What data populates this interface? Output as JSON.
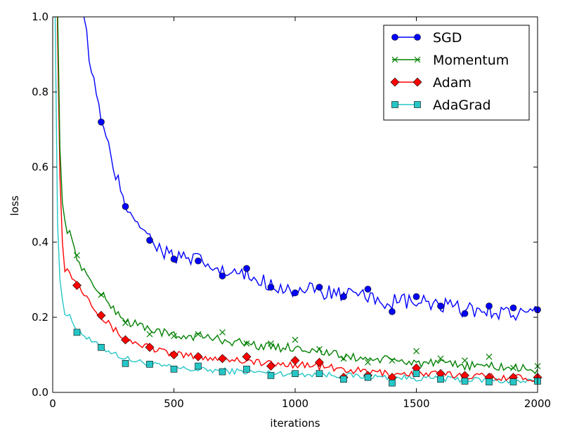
{
  "chart_data": {
    "type": "line",
    "title": "",
    "xlabel": "iterations",
    "ylabel": "loss",
    "xlim": [
      0,
      2000
    ],
    "ylim": [
      0,
      1.0
    ],
    "x_ticks": [
      "0",
      "500",
      "1000",
      "1500",
      "2000"
    ],
    "y_ticks": [
      "0.0",
      "0.2",
      "0.4",
      "0.6",
      "0.8",
      "1.0"
    ],
    "grid": false,
    "legend_position": "top-right",
    "series": [
      {
        "name": "SGD",
        "color": "#0000ff",
        "marker": "circle",
        "noise": 0.022,
        "curve": [
          [
            0,
            2.5
          ],
          [
            60,
            1.6
          ],
          [
            100,
            1.15
          ],
          [
            150,
            0.9
          ],
          [
            200,
            0.72
          ],
          [
            250,
            0.6
          ],
          [
            300,
            0.5
          ],
          [
            350,
            0.46
          ],
          [
            400,
            0.41
          ],
          [
            450,
            0.38
          ],
          [
            500,
            0.36
          ],
          [
            600,
            0.35
          ],
          [
            700,
            0.32
          ],
          [
            800,
            0.31
          ],
          [
            900,
            0.29
          ],
          [
            1000,
            0.27
          ],
          [
            1100,
            0.27
          ],
          [
            1200,
            0.26
          ],
          [
            1300,
            0.25
          ],
          [
            1400,
            0.24
          ],
          [
            1500,
            0.24
          ],
          [
            1600,
            0.23
          ],
          [
            1700,
            0.22
          ],
          [
            1800,
            0.22
          ],
          [
            1900,
            0.21
          ],
          [
            2000,
            0.21
          ]
        ],
        "markers": [
          [
            200,
            0.72
          ],
          [
            300,
            0.495
          ],
          [
            400,
            0.405
          ],
          [
            500,
            0.355
          ],
          [
            600,
            0.35
          ],
          [
            700,
            0.31
          ],
          [
            800,
            0.33
          ],
          [
            900,
            0.28
          ],
          [
            1000,
            0.265
          ],
          [
            1100,
            0.28
          ],
          [
            1200,
            0.255
          ],
          [
            1300,
            0.275
          ],
          [
            1400,
            0.215
          ],
          [
            1500,
            0.255
          ],
          [
            1600,
            0.23
          ],
          [
            1700,
            0.21
          ],
          [
            1800,
            0.23
          ],
          [
            1900,
            0.225
          ],
          [
            2000,
            0.22
          ]
        ]
      },
      {
        "name": "Momentum",
        "color": "#008000",
        "marker": "x",
        "noise": 0.012,
        "curve": [
          [
            0,
            2.5
          ],
          [
            15,
            1.3
          ],
          [
            25,
            0.75
          ],
          [
            35,
            0.55
          ],
          [
            50,
            0.45
          ],
          [
            70,
            0.42
          ],
          [
            100,
            0.36
          ],
          [
            150,
            0.3
          ],
          [
            200,
            0.26
          ],
          [
            300,
            0.19
          ],
          [
            400,
            0.17
          ],
          [
            500,
            0.15
          ],
          [
            600,
            0.15
          ],
          [
            700,
            0.14
          ],
          [
            800,
            0.13
          ],
          [
            900,
            0.12
          ],
          [
            1000,
            0.12
          ],
          [
            1100,
            0.11
          ],
          [
            1200,
            0.095
          ],
          [
            1300,
            0.09
          ],
          [
            1400,
            0.085
          ],
          [
            1500,
            0.08
          ],
          [
            1600,
            0.075
          ],
          [
            1700,
            0.072
          ],
          [
            1800,
            0.07
          ],
          [
            1900,
            0.065
          ],
          [
            2000,
            0.06
          ]
        ],
        "markers": [
          [
            100,
            0.365
          ],
          [
            200,
            0.26
          ],
          [
            300,
            0.185
          ],
          [
            400,
            0.155
          ],
          [
            500,
            0.15
          ],
          [
            600,
            0.155
          ],
          [
            700,
            0.16
          ],
          [
            800,
            0.13
          ],
          [
            900,
            0.13
          ],
          [
            1000,
            0.14
          ],
          [
            1100,
            0.115
          ],
          [
            1200,
            0.09
          ],
          [
            1300,
            0.08
          ],
          [
            1400,
            0.085
          ],
          [
            1500,
            0.11
          ],
          [
            1600,
            0.09
          ],
          [
            1700,
            0.085
          ],
          [
            1800,
            0.095
          ],
          [
            1900,
            0.065
          ],
          [
            2000,
            0.07
          ]
        ]
      },
      {
        "name": "Adam",
        "color": "#ff0000",
        "marker": "diamond",
        "noise": 0.01,
        "curve": [
          [
            0,
            2.5
          ],
          [
            15,
            1.2
          ],
          [
            25,
            0.7
          ],
          [
            35,
            0.45
          ],
          [
            50,
            0.33
          ],
          [
            70,
            0.32
          ],
          [
            100,
            0.29
          ],
          [
            150,
            0.25
          ],
          [
            200,
            0.2
          ],
          [
            300,
            0.14
          ],
          [
            400,
            0.12
          ],
          [
            500,
            0.1
          ],
          [
            600,
            0.095
          ],
          [
            700,
            0.09
          ],
          [
            800,
            0.085
          ],
          [
            900,
            0.075
          ],
          [
            1000,
            0.075
          ],
          [
            1100,
            0.07
          ],
          [
            1200,
            0.06
          ],
          [
            1300,
            0.055
          ],
          [
            1400,
            0.05
          ],
          [
            1500,
            0.05
          ],
          [
            1600,
            0.048
          ],
          [
            1700,
            0.045
          ],
          [
            1800,
            0.043
          ],
          [
            1900,
            0.04
          ],
          [
            2000,
            0.038
          ]
        ],
        "markers": [
          [
            100,
            0.285
          ],
          [
            200,
            0.205
          ],
          [
            300,
            0.14
          ],
          [
            400,
            0.12
          ],
          [
            500,
            0.1
          ],
          [
            600,
            0.095
          ],
          [
            700,
            0.09
          ],
          [
            800,
            0.095
          ],
          [
            900,
            0.07
          ],
          [
            1000,
            0.085
          ],
          [
            1100,
            0.08
          ],
          [
            1200,
            0.04
          ],
          [
            1300,
            0.045
          ],
          [
            1400,
            0.04
          ],
          [
            1500,
            0.065
          ],
          [
            1600,
            0.05
          ],
          [
            1700,
            0.045
          ],
          [
            1800,
            0.04
          ],
          [
            1900,
            0.04
          ],
          [
            2000,
            0.04
          ]
        ]
      },
      {
        "name": "AdaGrad",
        "color": "#00bfbf",
        "marker": "square",
        "noise": 0.008,
        "curve": [
          [
            0,
            2.5
          ],
          [
            10,
            1.0
          ],
          [
            20,
            0.45
          ],
          [
            30,
            0.3
          ],
          [
            50,
            0.21
          ],
          [
            70,
            0.2
          ],
          [
            100,
            0.17
          ],
          [
            150,
            0.14
          ],
          [
            200,
            0.12
          ],
          [
            300,
            0.09
          ],
          [
            400,
            0.075
          ],
          [
            500,
            0.065
          ],
          [
            600,
            0.06
          ],
          [
            700,
            0.058
          ],
          [
            800,
            0.055
          ],
          [
            900,
            0.052
          ],
          [
            1000,
            0.05
          ],
          [
            1100,
            0.048
          ],
          [
            1200,
            0.045
          ],
          [
            1300,
            0.042
          ],
          [
            1400,
            0.04
          ],
          [
            1500,
            0.038
          ],
          [
            1600,
            0.036
          ],
          [
            1700,
            0.034
          ],
          [
            1800,
            0.032
          ],
          [
            1900,
            0.03
          ],
          [
            2000,
            0.028
          ]
        ],
        "markers": [
          [
            100,
            0.16
          ],
          [
            200,
            0.12
          ],
          [
            300,
            0.077
          ],
          [
            400,
            0.075
          ],
          [
            500,
            0.062
          ],
          [
            600,
            0.07
          ],
          [
            700,
            0.055
          ],
          [
            800,
            0.062
          ],
          [
            900,
            0.045
          ],
          [
            1000,
            0.05
          ],
          [
            1100,
            0.05
          ],
          [
            1200,
            0.035
          ],
          [
            1300,
            0.04
          ],
          [
            1400,
            0.025
          ],
          [
            1500,
            0.05
          ],
          [
            1600,
            0.035
          ],
          [
            1700,
            0.03
          ],
          [
            1800,
            0.028
          ],
          [
            1900,
            0.028
          ],
          [
            2000,
            0.03
          ]
        ]
      }
    ]
  }
}
